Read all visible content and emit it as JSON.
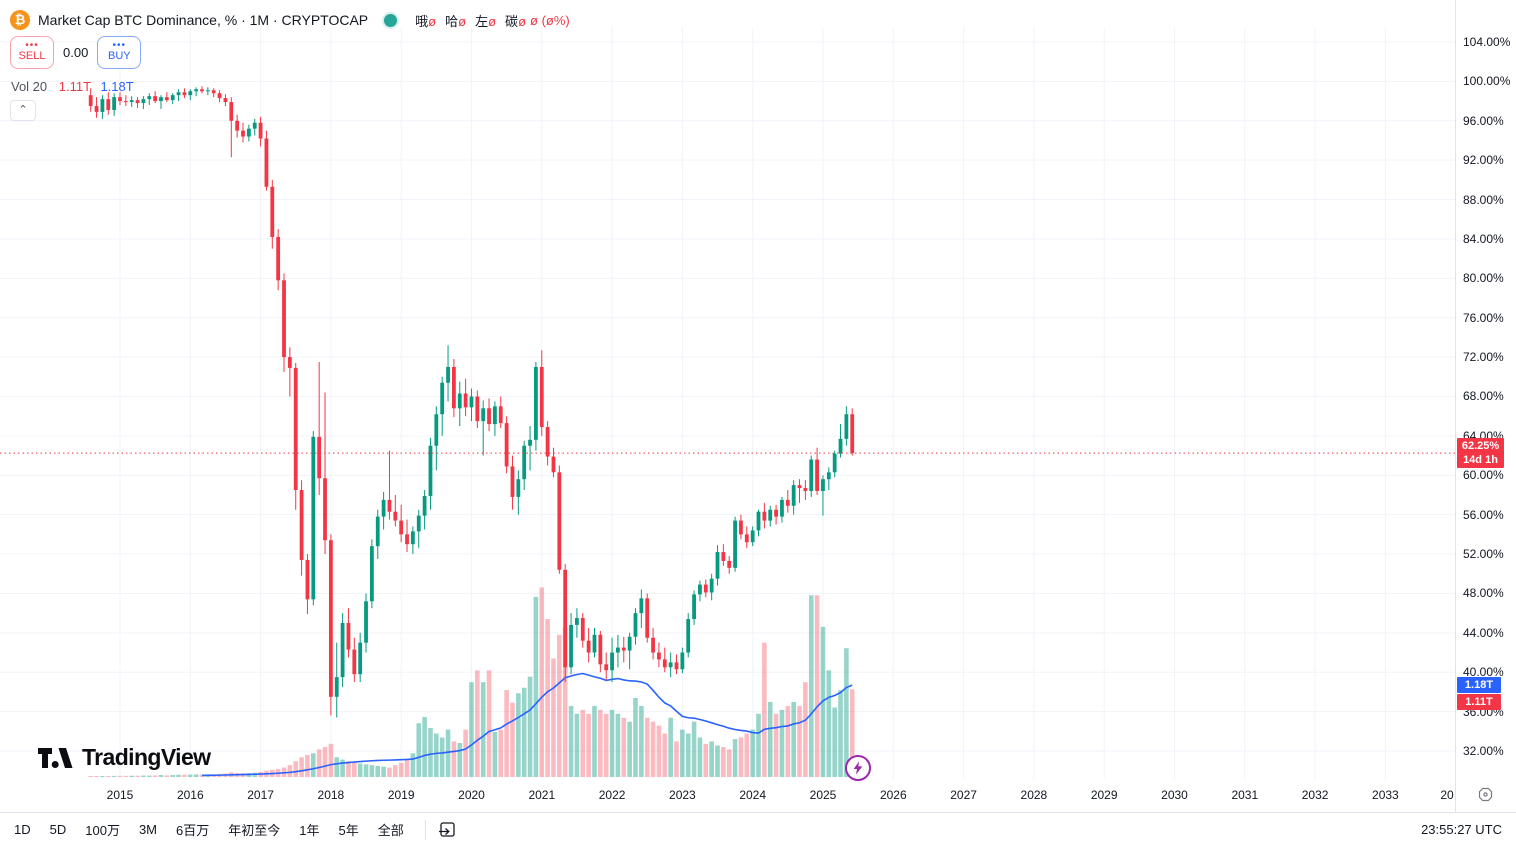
{
  "header": {
    "symbol_title": "Market Cap BTC Dominance, % · 1M · CRYPTOCAP",
    "btc_glyph": "₿",
    "status_dot_color": "#26a69a",
    "legend_fields": [
      {
        "label": "哦",
        "value": "ø"
      },
      {
        "label": "哈",
        "value": "ø"
      },
      {
        "label": "左",
        "value": "ø"
      },
      {
        "label": "碳",
        "value": "ø"
      }
    ],
    "legend_change": "ø (ø%)",
    "sell_label": "SELL",
    "buy_label": "BUY",
    "button_dots": "•••",
    "spread": "0.00",
    "vol_label": "Vol 20",
    "vol_current": "1.11T",
    "vol_ma": "1.18T",
    "collapse_glyph": "⌃"
  },
  "price_axis": {
    "labels": [
      "104.00%",
      "100.00%",
      "96.00%",
      "92.00%",
      "88.00%",
      "84.00%",
      "80.00%",
      "76.00%",
      "72.00%",
      "68.00%",
      "64.00%",
      "60.00%",
      "56.00%",
      "52.00%",
      "48.00%",
      "44.00%",
      "40.00%",
      "36.00%",
      "32.00%"
    ],
    "current_price": {
      "text": "62.25%",
      "countdown": "14d 1h",
      "color": "#f23645"
    },
    "vol_ma_label": {
      "text": "1.18T",
      "color": "#2962ff"
    },
    "vol_label": {
      "text": "1.11T",
      "color": "#f23645"
    }
  },
  "time_axis": {
    "years": [
      "2015",
      "2016",
      "2017",
      "2018",
      "2019",
      "2020",
      "2021",
      "2022",
      "2023",
      "2024",
      "2025",
      "2026",
      "2027",
      "2028",
      "2029",
      "2030",
      "2031",
      "2032",
      "2033"
    ],
    "partial_year": "20"
  },
  "toolbar": {
    "items": [
      "1D",
      "5D",
      "100万",
      "3M",
      "6百万",
      "年初至今",
      "1年",
      "5年",
      "全部"
    ],
    "clock": "23:55:27 UTC"
  },
  "logo_text": "TradingView",
  "chart_data": {
    "type": "candlestick+volume",
    "title": "Market Cap BTC Dominance",
    "interval": "1M",
    "units": {
      "price": "%",
      "volume": "T"
    },
    "ylim": [
      32,
      104
    ],
    "grid_step_pct": 4,
    "current_price": 62.25,
    "volume_ma_period": 20,
    "colors": {
      "up": "#089981",
      "down": "#f23645",
      "vol_up": "rgba(8,153,129,0.42)",
      "vol_down": "rgba(242,54,69,0.34)",
      "vol_ma_line": "#2962ff",
      "price_line": "#f23645",
      "grid": "#f0f3fa"
    },
    "columns": [
      "month",
      "open",
      "high",
      "low",
      "close",
      "volume"
    ],
    "rows": [
      [
        "2014-08",
        98.6,
        99.3,
        96.9,
        97.5,
        0.01
      ],
      [
        "2014-09",
        97.5,
        98.4,
        96.3,
        96.9,
        0.01
      ],
      [
        "2014-10",
        96.9,
        98.6,
        96.2,
        98.2,
        0.012
      ],
      [
        "2014-11",
        98.2,
        98.9,
        96.6,
        97.1,
        0.012
      ],
      [
        "2014-12",
        97.1,
        98.8,
        96.5,
        98.4,
        0.014
      ],
      [
        "2015-01",
        98.4,
        98.9,
        97.6,
        98.0,
        0.015
      ],
      [
        "2015-02",
        98.0,
        98.6,
        97.5,
        97.9,
        0.015
      ],
      [
        "2015-03",
        97.9,
        98.5,
        97.4,
        98.1,
        0.016
      ],
      [
        "2015-04",
        98.1,
        98.4,
        97.3,
        97.8,
        0.016
      ],
      [
        "2015-05",
        97.8,
        98.5,
        97.2,
        98.2,
        0.018
      ],
      [
        "2015-06",
        98.2,
        98.8,
        97.6,
        98.5,
        0.018
      ],
      [
        "2015-07",
        98.5,
        99.0,
        97.8,
        98.0,
        0.02
      ],
      [
        "2015-08",
        98.0,
        98.6,
        97.2,
        98.4,
        0.025
      ],
      [
        "2015-09",
        98.4,
        98.9,
        97.9,
        98.1,
        0.02
      ],
      [
        "2015-10",
        98.1,
        98.8,
        97.7,
        98.6,
        0.025
      ],
      [
        "2015-11",
        98.6,
        99.2,
        98.0,
        98.9,
        0.028
      ],
      [
        "2015-12",
        98.9,
        99.3,
        98.3,
        98.6,
        0.028
      ],
      [
        "2016-01",
        98.6,
        99.2,
        98.1,
        99.0,
        0.03
      ],
      [
        "2016-02",
        99.0,
        99.4,
        98.5,
        99.2,
        0.032
      ],
      [
        "2016-03",
        99.2,
        99.5,
        98.8,
        99.0,
        0.032
      ],
      [
        "2016-04",
        99.0,
        99.4,
        98.6,
        99.1,
        0.034
      ],
      [
        "2016-05",
        99.1,
        99.3,
        98.4,
        98.8,
        0.035
      ],
      [
        "2016-06",
        98.8,
        99.1,
        97.9,
        98.3,
        0.04
      ],
      [
        "2016-07",
        98.3,
        98.7,
        97.5,
        97.9,
        0.045
      ],
      [
        "2016-08",
        97.9,
        98.4,
        92.3,
        96.0,
        0.06
      ],
      [
        "2016-09",
        96.0,
        96.6,
        94.3,
        95.0,
        0.05
      ],
      [
        "2016-10",
        95.0,
        95.8,
        93.8,
        94.4,
        0.05
      ],
      [
        "2016-11",
        94.4,
        95.6,
        93.9,
        95.2,
        0.05
      ],
      [
        "2016-12",
        95.2,
        96.2,
        94.5,
        95.8,
        0.055
      ],
      [
        "2017-01",
        95.8,
        96.4,
        93.4,
        94.2,
        0.065
      ],
      [
        "2017-02",
        94.2,
        95.0,
        88.9,
        89.3,
        0.08
      ],
      [
        "2017-03",
        89.3,
        90.0,
        83.0,
        84.2,
        0.09
      ],
      [
        "2017-04",
        84.2,
        85.0,
        78.8,
        79.8,
        0.1
      ],
      [
        "2017-05",
        79.8,
        80.5,
        70.5,
        72.0,
        0.12
      ],
      [
        "2017-06",
        72.0,
        73.0,
        68.0,
        70.9,
        0.15
      ],
      [
        "2017-07",
        70.9,
        71.4,
        56.5,
        58.5,
        0.2
      ],
      [
        "2017-08",
        58.5,
        59.5,
        49.8,
        51.4,
        0.25
      ],
      [
        "2017-09",
        51.4,
        52.0,
        45.9,
        47.4,
        0.28
      ],
      [
        "2017-10",
        47.4,
        64.5,
        46.8,
        63.9,
        0.3
      ],
      [
        "2017-11",
        63.9,
        71.5,
        58.0,
        59.7,
        0.35
      ],
      [
        "2017-12",
        59.7,
        68.4,
        52.0,
        53.4,
        0.38
      ],
      [
        "2018-01",
        53.4,
        54.0,
        35.6,
        37.5,
        0.42
      ],
      [
        "2018-02",
        37.5,
        43.0,
        35.4,
        39.5,
        0.25
      ],
      [
        "2018-03",
        39.5,
        46.0,
        38.5,
        45.0,
        0.22
      ],
      [
        "2018-04",
        45.0,
        46.5,
        41.5,
        42.3,
        0.2
      ],
      [
        "2018-05",
        42.3,
        43.5,
        39.0,
        39.8,
        0.18
      ],
      [
        "2018-06",
        39.8,
        44.0,
        39.0,
        43.0,
        0.17
      ],
      [
        "2018-07",
        43.0,
        48.0,
        42.0,
        47.2,
        0.16
      ],
      [
        "2018-08",
        47.2,
        53.5,
        46.5,
        52.8,
        0.15
      ],
      [
        "2018-09",
        52.8,
        56.5,
        51.5,
        55.8,
        0.14
      ],
      [
        "2018-10",
        55.8,
        58.3,
        54.5,
        57.5,
        0.13
      ],
      [
        "2018-11",
        57.5,
        62.5,
        55.5,
        56.3,
        0.12
      ],
      [
        "2018-12",
        56.3,
        58.0,
        54.8,
        55.4,
        0.15
      ],
      [
        "2019-01",
        55.4,
        57.0,
        53.2,
        54.0,
        0.18
      ],
      [
        "2019-02",
        54.0,
        55.5,
        52.2,
        53.0,
        0.22
      ],
      [
        "2019-03",
        53.0,
        54.8,
        52.0,
        54.3,
        0.3
      ],
      [
        "2019-04",
        54.3,
        56.5,
        52.6,
        55.9,
        0.68
      ],
      [
        "2019-05",
        55.9,
        58.5,
        54.5,
        57.9,
        0.76
      ],
      [
        "2019-06",
        57.9,
        63.8,
        56.5,
        63.0,
        0.62
      ],
      [
        "2019-07",
        63.0,
        67.0,
        60.5,
        66.2,
        0.55
      ],
      [
        "2019-08",
        66.2,
        70.0,
        64.0,
        69.4,
        0.5
      ],
      [
        "2019-09",
        69.4,
        73.2,
        67.5,
        71.0,
        0.6
      ],
      [
        "2019-10",
        71.0,
        71.8,
        65.9,
        66.8,
        0.45
      ],
      [
        "2019-11",
        66.8,
        69.5,
        65.0,
        68.3,
        0.43
      ],
      [
        "2019-12",
        68.3,
        69.8,
        66.0,
        66.9,
        0.6
      ],
      [
        "2020-01",
        66.9,
        68.8,
        65.5,
        68.0,
        1.2
      ],
      [
        "2020-02",
        68.0,
        68.6,
        64.8,
        65.5,
        1.35
      ],
      [
        "2020-03",
        65.5,
        67.6,
        62.0,
        66.8,
        1.2
      ],
      [
        "2020-04",
        66.8,
        67.8,
        64.5,
        65.2,
        1.35
      ],
      [
        "2020-05",
        65.2,
        67.5,
        64.0,
        67.0,
        0.57
      ],
      [
        "2020-06",
        67.0,
        68.0,
        64.8,
        65.3,
        0.6
      ],
      [
        "2020-07",
        65.3,
        66.0,
        60.2,
        60.9,
        1.1
      ],
      [
        "2020-08",
        60.9,
        62.0,
        56.5,
        57.8,
        0.94
      ],
      [
        "2020-09",
        57.8,
        60.5,
        56.0,
        59.6,
        1.06
      ],
      [
        "2020-10",
        59.6,
        63.5,
        58.5,
        63.0,
        1.13
      ],
      [
        "2020-11",
        63.0,
        65.0,
        60.5,
        63.6,
        1.27
      ],
      [
        "2020-12",
        63.6,
        71.5,
        62.5,
        71.0,
        2.28
      ],
      [
        "2021-01",
        71.0,
        72.7,
        64.0,
        64.9,
        2.4
      ],
      [
        "2021-02",
        64.9,
        65.5,
        61.0,
        61.9,
        2.0
      ],
      [
        "2021-03",
        61.9,
        62.8,
        59.8,
        60.3,
        1.5
      ],
      [
        "2021-04",
        60.3,
        61.0,
        50.0,
        50.4,
        1.8
      ],
      [
        "2021-05",
        50.4,
        51.0,
        39.0,
        40.5,
        1.9
      ],
      [
        "2021-06",
        40.5,
        46.0,
        39.8,
        44.8,
        0.9
      ],
      [
        "2021-07",
        44.8,
        46.5,
        43.5,
        45.5,
        0.8
      ],
      [
        "2021-08",
        45.5,
        46.0,
        42.5,
        43.2,
        0.85
      ],
      [
        "2021-09",
        43.2,
        44.5,
        41.0,
        42.0,
        0.8
      ],
      [
        "2021-10",
        42.0,
        44.5,
        41.5,
        43.8,
        0.9
      ],
      [
        "2021-11",
        43.8,
        44.2,
        40.0,
        40.8,
        0.85
      ],
      [
        "2021-12",
        40.8,
        42.0,
        39.2,
        40.2,
        0.8
      ],
      [
        "2022-01",
        40.2,
        43.5,
        39.0,
        42.0,
        0.85
      ],
      [
        "2022-02",
        42.0,
        43.8,
        40.5,
        42.5,
        0.8
      ],
      [
        "2022-03",
        42.5,
        43.6,
        41.0,
        42.2,
        0.75
      ],
      [
        "2022-04",
        42.2,
        44.0,
        40.3,
        43.6,
        0.7
      ],
      [
        "2022-05",
        43.6,
        46.5,
        42.8,
        46.0,
        1.0
      ],
      [
        "2022-06",
        46.0,
        48.4,
        44.5,
        47.5,
        0.9
      ],
      [
        "2022-07",
        47.5,
        48.0,
        43.0,
        43.5,
        0.75
      ],
      [
        "2022-08",
        43.5,
        44.5,
        41.3,
        42.0,
        0.7
      ],
      [
        "2022-09",
        42.0,
        43.0,
        40.5,
        41.3,
        0.65
      ],
      [
        "2022-10",
        41.3,
        42.5,
        40.0,
        40.5,
        0.55
      ],
      [
        "2022-11",
        40.5,
        42.0,
        39.5,
        41.0,
        0.75
      ],
      [
        "2022-12",
        41.0,
        41.8,
        39.8,
        40.3,
        0.45
      ],
      [
        "2023-01",
        40.3,
        42.5,
        39.9,
        42.0,
        0.6
      ],
      [
        "2023-02",
        42.0,
        46.0,
        41.5,
        45.4,
        0.55
      ],
      [
        "2023-03",
        45.4,
        48.3,
        44.8,
        47.9,
        0.7
      ],
      [
        "2023-04",
        47.9,
        49.3,
        47.2,
        48.9,
        0.5
      ],
      [
        "2023-05",
        48.9,
        49.4,
        47.6,
        48.1,
        0.42
      ],
      [
        "2023-06",
        48.1,
        50.0,
        47.3,
        49.5,
        0.45
      ],
      [
        "2023-07",
        49.5,
        52.9,
        48.8,
        52.2,
        0.4
      ],
      [
        "2023-08",
        52.2,
        53.0,
        50.8,
        51.3,
        0.38
      ],
      [
        "2023-09",
        51.3,
        51.8,
        50.0,
        50.6,
        0.35
      ],
      [
        "2023-10",
        50.6,
        55.8,
        50.2,
        55.4,
        0.48
      ],
      [
        "2023-11",
        55.4,
        56.0,
        53.5,
        54.0,
        0.5
      ],
      [
        "2023-12",
        54.0,
        54.8,
        52.6,
        53.2,
        0.55
      ],
      [
        "2024-01",
        53.2,
        54.8,
        52.8,
        54.4,
        0.6
      ],
      [
        "2024-02",
        54.4,
        56.5,
        53.8,
        56.3,
        0.8
      ],
      [
        "2024-03",
        56.3,
        57.2,
        54.6,
        55.4,
        1.7
      ],
      [
        "2024-04",
        55.4,
        56.9,
        54.8,
        56.5,
        0.95
      ],
      [
        "2024-05",
        56.5,
        57.0,
        55.0,
        55.8,
        0.8
      ],
      [
        "2024-06",
        55.8,
        57.8,
        55.2,
        57.5,
        0.85
      ],
      [
        "2024-07",
        57.5,
        58.5,
        56.2,
        56.9,
        0.9
      ],
      [
        "2024-08",
        56.9,
        59.5,
        56.0,
        59.0,
        0.95
      ],
      [
        "2024-09",
        59.0,
        59.6,
        57.2,
        58.7,
        0.9
      ],
      [
        "2024-10",
        58.7,
        59.5,
        57.5,
        58.4,
        1.2
      ],
      [
        "2024-11",
        58.4,
        62.0,
        57.8,
        61.6,
        2.3
      ],
      [
        "2024-12",
        61.6,
        62.8,
        58.0,
        58.4,
        2.3
      ],
      [
        "2025-01",
        58.4,
        60.0,
        55.9,
        59.6,
        1.9
      ],
      [
        "2025-02",
        59.6,
        60.8,
        58.5,
        60.3,
        1.35
      ],
      [
        "2025-03",
        60.3,
        62.5,
        59.8,
        62.2,
        0.88
      ],
      [
        "2025-04",
        62.2,
        65.2,
        61.8,
        63.7,
        1.1
      ],
      [
        "2025-05",
        63.7,
        67.0,
        63.0,
        66.2,
        1.63
      ],
      [
        "2025-06",
        66.2,
        66.8,
        62.0,
        62.25,
        1.11
      ]
    ]
  }
}
